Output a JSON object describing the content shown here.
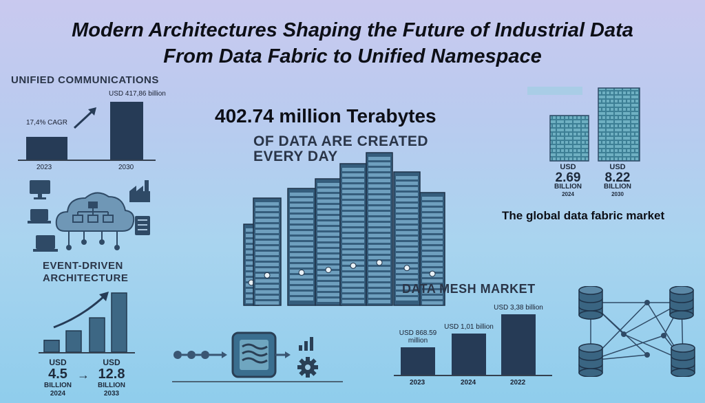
{
  "title": {
    "line1": "Modern Architectures Shaping the Future of Industrial Data",
    "line2": "From Data Fabric to Unified Namespace"
  },
  "unified_communications": {
    "heading": "UNIFIED COMMUNICATIONS",
    "cagr": "17,4% CAGR",
    "value_2030": "USD 417,86 billion",
    "year_left": "2023",
    "year_right": "2030"
  },
  "center_stat": {
    "headline": "402.74 million Terabytes",
    "sub_line1": "OF DATA ARE CREATED",
    "sub_line2": "EVERY DAY"
  },
  "data_fabric": {
    "left_usd": "USD",
    "left_value": "2.69",
    "left_unit": "BILLION",
    "left_year": "2024",
    "right_usd": "USD",
    "right_value": "8.22",
    "right_unit": "BILLION",
    "right_year": "2030",
    "caption": "The global data fabric market"
  },
  "event_driven": {
    "line1": "EVENT-DRIVEN",
    "line2": "ARCHITECTURE"
  },
  "growth": {
    "left_usd": "USD",
    "left_value": "4.5",
    "left_unit": "BILLION",
    "left_year": "2024",
    "arrow": "→",
    "right_usd": "USD",
    "right_value": "12.8",
    "right_unit": "BILLION",
    "right_year": "2033",
    "bar_levels": [
      0.2,
      0.36,
      0.58,
      1.0
    ]
  },
  "data_mesh": {
    "heading": "DATA MESH MARKET",
    "bars": [
      {
        "label_line1": "USD 868.59",
        "label_line2": "million",
        "year": "2023",
        "level": 0.46
      },
      {
        "label_line1": "USD 1,01 billion",
        "label_line2": "",
        "year": "2024",
        "level": 0.68
      },
      {
        "label_line1": "USD 3,38 billion",
        "label_line2": "",
        "year": "2022",
        "level": 1.0
      }
    ]
  },
  "icons": [
    "monitor-icon",
    "laptop-icon",
    "cloud-network-icon",
    "factory-icon",
    "server-icon",
    "pipeline-icon",
    "gear-icon",
    "bar-chart-icon",
    "database-icon",
    "server-stack-icon"
  ],
  "colors": {
    "bar": "#263b56",
    "text": "#0d0f16",
    "accent": "#3a6e8f"
  }
}
